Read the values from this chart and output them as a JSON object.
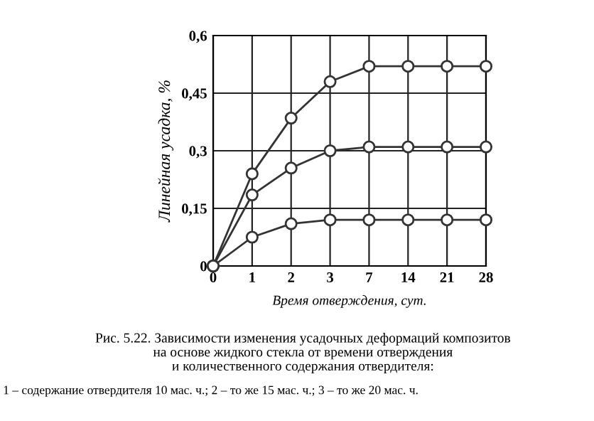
{
  "chart_data": {
    "type": "line",
    "categories": [
      "0",
      "1",
      "2",
      "3",
      "7",
      "14",
      "21",
      "28"
    ],
    "series": [
      {
        "color": "#333333",
        "values": [
          0,
          0.24,
          0.385,
          0.48,
          0.52,
          0.52,
          0.52,
          0.52
        ]
      },
      {
        "color": "#333333",
        "values": [
          0,
          0.185,
          0.255,
          0.3,
          0.31,
          0.31,
          0.31,
          0.31
        ]
      },
      {
        "color": "#333333",
        "values": [
          0,
          0.075,
          0.11,
          0.12,
          0.12,
          0.12,
          0.12,
          0.12
        ]
      }
    ],
    "xlabel": "Время отверждения, сут.",
    "ylabel": "Линейная усадка, %",
    "ylim": [
      0,
      0.6
    ],
    "yticks": [
      0,
      {
        "value": 0.15,
        "label": "0,15"
      },
      {
        "value": 0.3,
        "label": "0,3"
      },
      {
        "value": 0.45,
        "label": "0,45"
      },
      {
        "value": 0.6,
        "label": "0,6"
      }
    ],
    "grid": true,
    "marker": "circle",
    "line_style": "solid",
    "annotations": [
      "Рис. 5.22. Зависимости изменения усадочных деформаций композитов\nна основе жидкого стекла от времени отверждения\nи количественного содержания отвердителя:",
      "1 – содержание отвердителя 10 мас. ч.; 2 – то же 15 мас. ч.; 3 – то же 20 мас. ч."
    ]
  }
}
